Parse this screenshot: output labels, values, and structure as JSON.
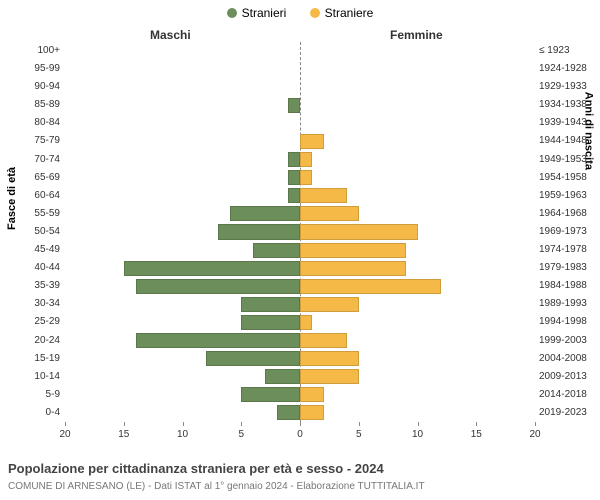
{
  "legend": {
    "male": {
      "label": "Stranieri",
      "color": "#6b8e5a"
    },
    "female": {
      "label": "Straniere",
      "color": "#f5b947"
    }
  },
  "column_headers": {
    "left": "Maschi",
    "right": "Femmine"
  },
  "axis_titles": {
    "left": "Fasce di età",
    "right": "Anni di nascita"
  },
  "chart": {
    "type": "population-pyramid",
    "xlim": 20,
    "xtick_step": 5,
    "xticks_left": [
      20,
      15,
      10,
      5,
      0
    ],
    "xticks_right": [
      0,
      5,
      10,
      15,
      20
    ],
    "bar_color_m": "#6b8e5a",
    "bar_color_f": "#f5b947",
    "background_color": "#ffffff",
    "rows": [
      {
        "age": "100+",
        "birth": "≤ 1923",
        "m": 0,
        "f": 0
      },
      {
        "age": "95-99",
        "birth": "1924-1928",
        "m": 0,
        "f": 0
      },
      {
        "age": "90-94",
        "birth": "1929-1933",
        "m": 0,
        "f": 0
      },
      {
        "age": "85-89",
        "birth": "1934-1938",
        "m": 1,
        "f": 0
      },
      {
        "age": "80-84",
        "birth": "1939-1943",
        "m": 0,
        "f": 0
      },
      {
        "age": "75-79",
        "birth": "1944-1948",
        "m": 0,
        "f": 2
      },
      {
        "age": "70-74",
        "birth": "1949-1953",
        "m": 1,
        "f": 1
      },
      {
        "age": "65-69",
        "birth": "1954-1958",
        "m": 1,
        "f": 1
      },
      {
        "age": "60-64",
        "birth": "1959-1963",
        "m": 1,
        "f": 4
      },
      {
        "age": "55-59",
        "birth": "1964-1968",
        "m": 6,
        "f": 5
      },
      {
        "age": "50-54",
        "birth": "1969-1973",
        "m": 7,
        "f": 10
      },
      {
        "age": "45-49",
        "birth": "1974-1978",
        "m": 4,
        "f": 9
      },
      {
        "age": "40-44",
        "birth": "1979-1983",
        "m": 15,
        "f": 9
      },
      {
        "age": "35-39",
        "birth": "1984-1988",
        "m": 14,
        "f": 12
      },
      {
        "age": "30-34",
        "birth": "1989-1993",
        "m": 5,
        "f": 5
      },
      {
        "age": "25-29",
        "birth": "1994-1998",
        "m": 5,
        "f": 1
      },
      {
        "age": "20-24",
        "birth": "1999-2003",
        "m": 14,
        "f": 4
      },
      {
        "age": "15-19",
        "birth": "2004-2008",
        "m": 8,
        "f": 5
      },
      {
        "age": "10-14",
        "birth": "2009-2013",
        "m": 3,
        "f": 5
      },
      {
        "age": "5-9",
        "birth": "2014-2018",
        "m": 5,
        "f": 2
      },
      {
        "age": "0-4",
        "birth": "2019-2023",
        "m": 2,
        "f": 2
      }
    ]
  },
  "footer": {
    "title": "Popolazione per cittadinanza straniera per età e sesso - 2024",
    "subtitle": "COMUNE DI ARNESANO (LE) - Dati ISTAT al 1° gennaio 2024 - Elaborazione TUTTITALIA.IT"
  }
}
